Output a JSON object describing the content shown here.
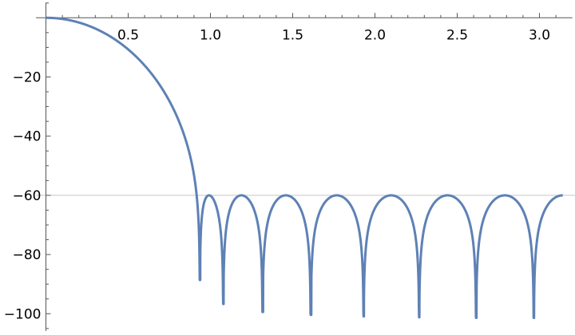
{
  "chart_data": {
    "type": "line",
    "title": "",
    "xlabel": "",
    "ylabel": "",
    "xlim": [
      -0.06,
      3.2
    ],
    "ylim": [
      -105.8,
      5.1
    ],
    "x_ticks": [
      {
        "value": 0.5,
        "label": "0.5"
      },
      {
        "value": 1.0,
        "label": "1.0"
      },
      {
        "value": 1.5,
        "label": "1.5"
      },
      {
        "value": 2.0,
        "label": "2.0"
      },
      {
        "value": 2.5,
        "label": "2.5"
      },
      {
        "value": 3.0,
        "label": "3.0"
      }
    ],
    "x_minor_step": 0.1,
    "y_ticks": [
      {
        "value": -20,
        "label": "−20"
      },
      {
        "value": -40,
        "label": "−40"
      },
      {
        "value": -60,
        "label": "−60"
      },
      {
        "value": -80,
        "label": "−80"
      },
      {
        "value": -100,
        "label": "−100"
      }
    ],
    "y_minor_step": 5,
    "gridlines": [
      {
        "axis": "y",
        "value": -60,
        "color": "#c8c8c8"
      }
    ],
    "grid": false,
    "legend": "none",
    "series": [
      {
        "color": "#5e81b5",
        "x_range": [
          0,
          3.1416
        ],
        "model": {
          "kind": "chebyshev-window-response",
          "order": 16,
          "sidelobe_db": -60
        },
        "key_points": [
          {
            "x": 0,
            "y": 0
          },
          {
            "x": 0.5,
            "y": -9.5
          },
          {
            "x": 0.75,
            "y": -28
          },
          {
            "x": 0.92,
            "y": -60
          }
        ],
        "nulls": [
          {
            "x": 0.938,
            "y": -88.6
          },
          {
            "x": 1.08,
            "y": -96.7
          },
          {
            "x": 1.32,
            "y": -99.4
          },
          {
            "x": 1.613,
            "y": -100.4
          },
          {
            "x": 1.933,
            "y": -100.9
          },
          {
            "x": 2.27,
            "y": -101.2
          },
          {
            "x": 2.617,
            "y": -101.4
          },
          {
            "x": 2.967,
            "y": -101.4
          }
        ],
        "peaks": [
          {
            "x": 0.99,
            "y": -60
          },
          {
            "x": 1.19,
            "y": -60
          },
          {
            "x": 1.47,
            "y": -60
          },
          {
            "x": 1.77,
            "y": -60
          },
          {
            "x": 2.1,
            "y": -60
          },
          {
            "x": 2.44,
            "y": -60
          },
          {
            "x": 2.79,
            "y": -60
          },
          {
            "x": 3.1416,
            "y": -60
          }
        ]
      }
    ]
  }
}
